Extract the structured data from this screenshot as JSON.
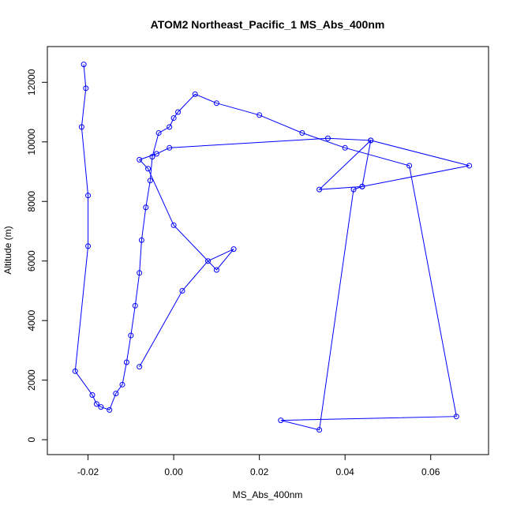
{
  "chart_data": {
    "type": "line",
    "title": "ATOM2 Northeast_Pacific_1 MS_Abs_400nm",
    "xlabel": "MS_Abs_400nm",
    "ylabel": "Altitude (m)",
    "xlim": [
      -0.0295,
      0.0735
    ],
    "ylim": [
      -500,
      13200
    ],
    "xticks": [
      -0.02,
      0.0,
      0.02,
      0.04,
      0.06
    ],
    "xtick_labels": [
      "-0.02",
      "0.00",
      "0.02",
      "0.04",
      "0.06"
    ],
    "yticks": [
      0,
      2000,
      4000,
      6000,
      8000,
      10000,
      12000
    ],
    "ytick_labels": [
      "0",
      "2000",
      "4000",
      "6000",
      "8000",
      "10000",
      "12000"
    ],
    "grid": false,
    "legend": "none",
    "color": "#0000ff",
    "series": [
      {
        "x": [
          -0.021,
          -0.0205,
          -0.0215,
          -0.02,
          -0.02,
          -0.023,
          -0.019,
          -0.018,
          -0.017,
          -0.015,
          -0.0135,
          -0.012,
          -0.011,
          -0.01,
          -0.009,
          -0.008,
          -0.0075,
          -0.0065,
          -0.0055,
          -0.005,
          -0.0035,
          -0.001,
          0.0,
          0.001,
          0.005,
          0.01,
          0.02,
          0.03,
          0.04,
          0.055,
          0.066,
          0.025,
          0.034,
          0.042,
          0.044,
          0.046,
          0.069,
          0.044,
          0.034,
          0.046,
          0.036,
          -0.001,
          -0.004,
          -0.008,
          -0.006,
          0.0,
          0.01,
          0.014,
          0.008,
          0.002,
          -0.008
        ],
        "y": [
          12600,
          11800,
          10500,
          8200,
          6500,
          2300,
          1500,
          1200,
          1100,
          1000,
          1550,
          1850,
          2600,
          3500,
          4500,
          5600,
          6700,
          7800,
          8700,
          9500,
          10300,
          10500,
          10800,
          11000,
          11600,
          11300,
          10900,
          10300,
          9800,
          9200,
          780,
          650,
          330,
          8400,
          8500,
          10050,
          9200,
          8500,
          8400,
          10050,
          10120,
          9800,
          9600,
          9400,
          9100,
          7200,
          5700,
          6400,
          6000,
          5000,
          2450
        ]
      }
    ]
  }
}
